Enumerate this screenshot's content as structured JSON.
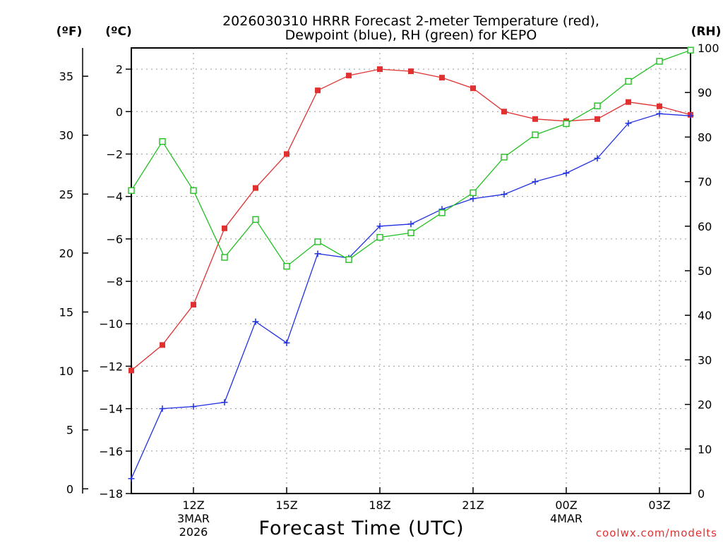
{
  "chart_data": {
    "type": "line",
    "title_line1": "2026030310 HRRR Forecast 2-meter Temperature (red),",
    "title_line2": "Dewpoint (blue), RH (green) for KEPO",
    "xlabel": "Forecast Time (UTC)",
    "left_outer_axis": {
      "unit_label": "(ºF)",
      "ticks": [
        0,
        5,
        10,
        15,
        20,
        25,
        30,
        35
      ]
    },
    "left_inner_axis": {
      "unit_label": "(ºC)",
      "ylim": [
        -18,
        3
      ],
      "ticks": [
        -18,
        -16,
        -14,
        -12,
        -10,
        -8,
        -6,
        -4,
        -2,
        0,
        2
      ]
    },
    "right_axis": {
      "unit_label": "(RH)",
      "ylim": [
        0,
        100
      ],
      "ticks": [
        0,
        10,
        20,
        30,
        40,
        50,
        60,
        70,
        80,
        90,
        100
      ]
    },
    "x_hours": [
      10,
      11,
      12,
      13,
      14,
      15,
      16,
      17,
      18,
      19,
      20,
      21,
      22,
      23,
      24,
      25,
      26,
      27,
      28
    ],
    "xlim": [
      10,
      28
    ],
    "x_ticks": [
      {
        "hour": 12,
        "label": "12Z",
        "sub1": "3MAR",
        "sub2": "2026"
      },
      {
        "hour": 15,
        "label": "15Z"
      },
      {
        "hour": 18,
        "label": "18Z"
      },
      {
        "hour": 21,
        "label": "21Z"
      },
      {
        "hour": 24,
        "label": "00Z",
        "sub1": "4MAR"
      },
      {
        "hour": 27,
        "label": "03Z"
      }
    ],
    "series": [
      {
        "name": "Temperature",
        "unit": "C",
        "color": "#e03030",
        "marker": "filled-square",
        "values": [
          -12.2,
          -11.0,
          -9.1,
          -5.5,
          -3.6,
          -2.0,
          1.0,
          1.7,
          2.0,
          1.9,
          1.6,
          1.1,
          0.0,
          -0.35,
          -0.45,
          -0.35,
          0.45,
          0.25,
          -0.15
        ]
      },
      {
        "name": "Dewpoint",
        "unit": "C",
        "color": "#2030e0",
        "marker": "plus",
        "values": [
          -17.3,
          -14.0,
          -13.9,
          -13.7,
          -9.9,
          -10.9,
          -6.7,
          -6.9,
          -5.4,
          -5.3,
          -4.6,
          -4.1,
          -3.9,
          -3.3,
          -2.9,
          -2.2,
          -0.55,
          -0.1,
          -0.2
        ]
      },
      {
        "name": "RH",
        "unit": "%",
        "color": "#20c020",
        "marker": "open-square",
        "values": [
          68,
          79,
          68,
          53,
          61.5,
          51,
          56.5,
          52.5,
          57.5,
          58.5,
          63,
          67.5,
          75.5,
          80.5,
          83,
          87,
          92.5,
          97,
          99.5
        ]
      }
    ]
  },
  "credit": "coolwx.com/modelts"
}
